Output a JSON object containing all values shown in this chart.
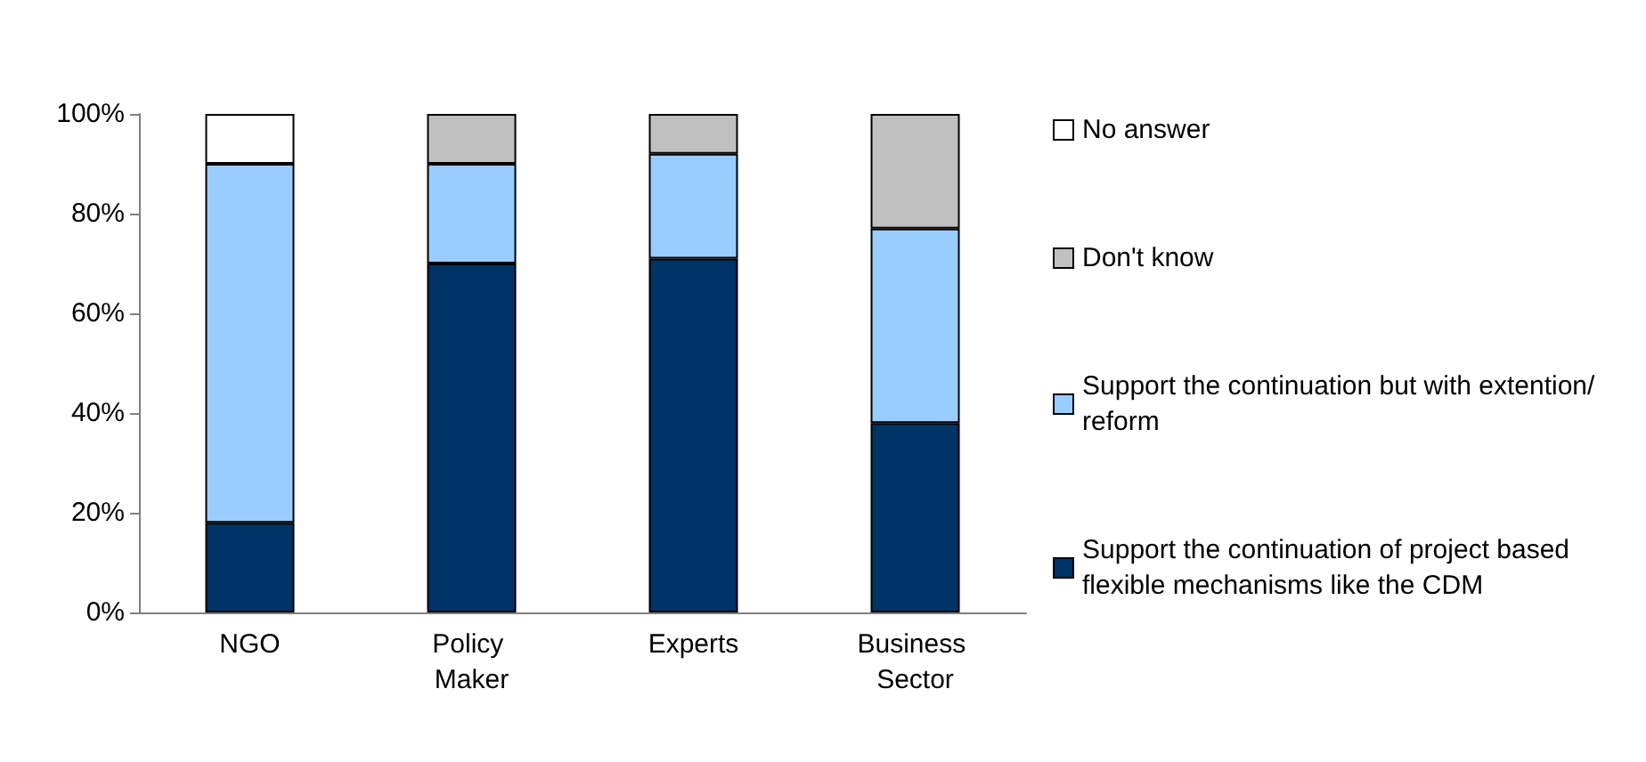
{
  "chart_data": {
    "type": "bar",
    "stacked": true,
    "categories": [
      "NGO",
      "Policy Maker",
      "Experts",
      "Business Sector"
    ],
    "series": [
      {
        "name": "Support the continuation of project based flexible mechanisms like the CDM",
        "color": "#003366",
        "values": [
          18,
          70,
          71,
          38
        ]
      },
      {
        "name": "Support the continuation but with extention/reform",
        "color": "#99ccff",
        "values": [
          72,
          20,
          21,
          39
        ]
      },
      {
        "name": "Don't know",
        "color": "#c0c0c0",
        "values": [
          0,
          10,
          8,
          23
        ]
      },
      {
        "name": "No answer",
        "color": "#ffffff",
        "values": [
          10,
          0,
          0,
          0
        ]
      }
    ],
    "ylim": [
      0,
      100
    ],
    "yticks": [
      {
        "value": 0,
        "label": "0%"
      },
      {
        "value": 20,
        "label": "20%"
      },
      {
        "value": 40,
        "label": "40%"
      },
      {
        "value": 60,
        "label": "60%"
      },
      {
        "value": 80,
        "label": "80%"
      },
      {
        "value": 100,
        "label": "100%"
      }
    ],
    "grid": false,
    "legend": "right"
  }
}
